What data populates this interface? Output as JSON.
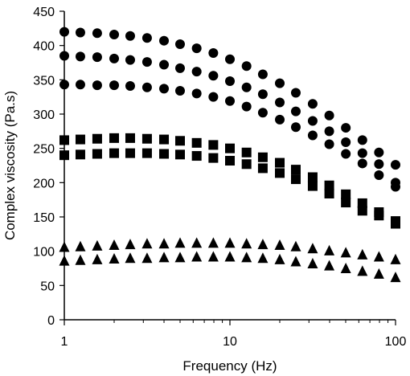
{
  "chart_data": {
    "type": "scatter",
    "title": "",
    "xlabel": "Frequency (Hz)",
    "ylabel": "Complex viscosity (Pa.s)",
    "xscale": "log",
    "xlim": [
      1,
      100
    ],
    "ylim": [
      0,
      450
    ],
    "x_ticks": [
      1,
      10,
      100
    ],
    "x_tick_labels": [
      "1",
      "10",
      "100"
    ],
    "y_ticks": [
      0,
      50,
      100,
      150,
      200,
      250,
      300,
      350,
      400,
      450
    ],
    "y_tick_labels": [
      "0",
      "50",
      "100",
      "150",
      "200",
      "250",
      "300",
      "350",
      "400",
      "450"
    ],
    "grid": false,
    "legend": "none",
    "colors": {
      "marker": "#000000",
      "axis": "#000000"
    },
    "series": [
      {
        "marker": "circle",
        "x": [
          1,
          1.25,
          1.58,
          2,
          2.5,
          3.16,
          4,
          5,
          6.3,
          7.94,
          10,
          12.6,
          15.8,
          20,
          25,
          31.6,
          39.8,
          50.1,
          63.1,
          79.4,
          100
        ],
        "y": [
          420,
          419,
          418,
          416,
          414,
          411,
          407,
          402,
          396,
          389,
          380,
          370,
          358,
          345,
          331,
          315,
          298,
          280,
          262,
          244,
          226
        ]
      },
      {
        "marker": "circle",
        "x": [
          1,
          1.25,
          1.58,
          2,
          2.5,
          3.16,
          4,
          5,
          6.3,
          7.94,
          10,
          12.6,
          15.8,
          20,
          25,
          31.6,
          39.8,
          50.1,
          63.1,
          79.4,
          100
        ],
        "y": [
          385,
          384,
          383,
          381,
          379,
          376,
          372,
          367,
          362,
          356,
          348,
          339,
          329,
          317,
          304,
          290,
          275,
          259,
          243,
          227,
          200
        ]
      },
      {
        "marker": "circle",
        "x": [
          1,
          1.25,
          1.58,
          2,
          2.5,
          3.16,
          4,
          5,
          6.3,
          7.94,
          10,
          12.6,
          15.8,
          20,
          25,
          31.6,
          39.8,
          50.1,
          63.1,
          79.4,
          100
        ],
        "y": [
          343,
          343,
          342,
          342,
          341,
          339,
          337,
          334,
          330,
          325,
          319,
          311,
          302,
          292,
          281,
          269,
          256,
          242,
          228,
          211,
          194
        ]
      },
      {
        "marker": "square",
        "x": [
          1,
          1.25,
          1.58,
          2,
          2.5,
          3.16,
          4,
          5,
          6.3,
          7.94,
          10,
          12.6,
          15.8,
          20,
          25,
          31.6,
          39.8,
          50.1,
          63.1,
          79.4,
          100
        ],
        "y": [
          262,
          263,
          264,
          265,
          265,
          264,
          263,
          261,
          258,
          255,
          250,
          244,
          237,
          229,
          219,
          208,
          196,
          183,
          170,
          157,
          144
        ]
      },
      {
        "marker": "square",
        "x": [
          1,
          1.25,
          1.58,
          2,
          2.5,
          3.16,
          4,
          5,
          6.3,
          7.94,
          10,
          12.6,
          15.8,
          20,
          25,
          31.6,
          39.8,
          50.1,
          63.1,
          79.4,
          100
        ],
        "y": [
          240,
          241,
          242,
          243,
          243,
          243,
          242,
          241,
          239,
          236,
          232,
          227,
          221,
          214,
          205,
          195,
          184,
          171,
          159,
          152,
          140
        ]
      },
      {
        "marker": "triangle",
        "x": [
          1,
          1.25,
          1.58,
          2,
          2.5,
          3.16,
          4,
          5,
          6.3,
          7.94,
          10,
          12.6,
          15.8,
          20,
          25,
          31.6,
          39.8,
          50.1,
          63.1,
          79.4,
          100
        ],
        "y": [
          106,
          107,
          108,
          109,
          110,
          111,
          111,
          112,
          112,
          112,
          112,
          111,
          110,
          109,
          107,
          104,
          101,
          98,
          95,
          92,
          88
        ]
      },
      {
        "marker": "triangle",
        "x": [
          1,
          1.25,
          1.58,
          2,
          2.5,
          3.16,
          4,
          5,
          6.3,
          7.94,
          10,
          12.6,
          15.8,
          20,
          25,
          31.6,
          39.8,
          50.1,
          63.1,
          79.4,
          100
        ],
        "y": [
          86,
          87,
          88,
          89,
          90,
          90,
          91,
          91,
          92,
          92,
          92,
          91,
          90,
          88,
          85,
          82,
          79,
          75,
          71,
          67,
          62
        ]
      }
    ]
  }
}
